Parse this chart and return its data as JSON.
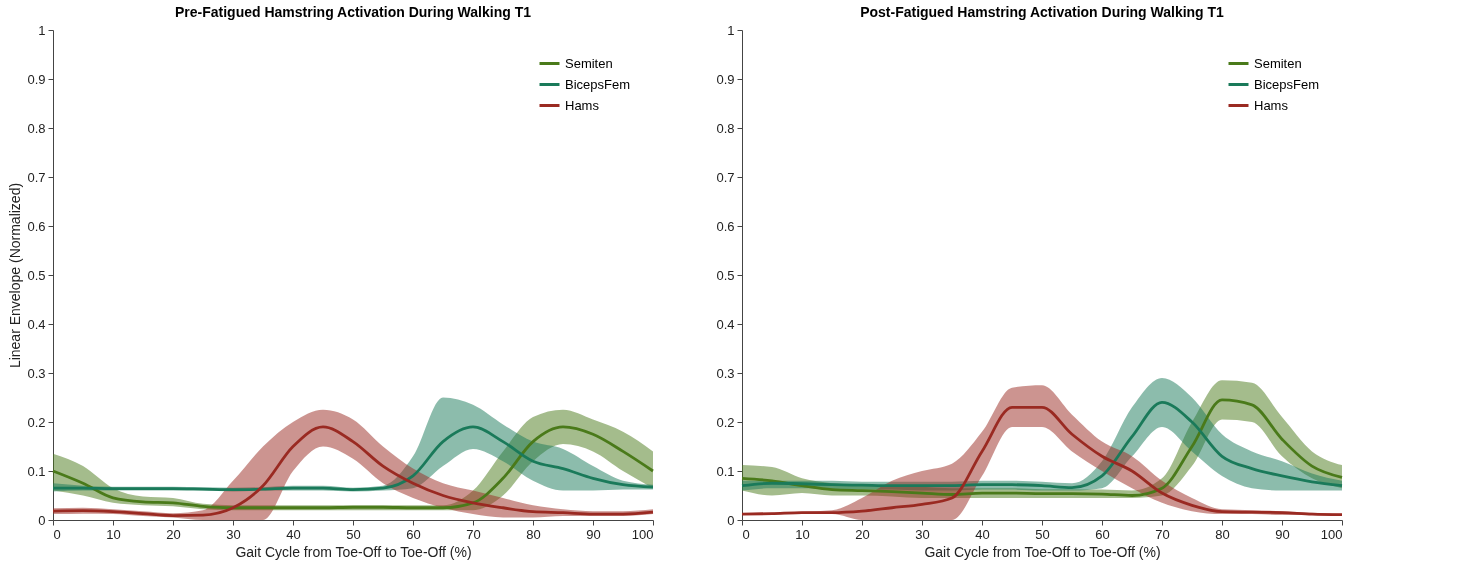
{
  "chart_data": [
    {
      "type": "line",
      "title": "Pre-Fatigued Hamstring Activation During Walking T1",
      "xlabel": "Gait Cycle from Toe-Off to Toe-Off (%)",
      "ylabel": "Linear Envelope (Normalized)",
      "x": [
        0,
        5,
        10,
        15,
        20,
        25,
        30,
        35,
        40,
        45,
        50,
        55,
        60,
        65,
        70,
        75,
        80,
        85,
        90,
        95,
        100
      ],
      "series": [
        {
          "name": "Semiten",
          "color": "#4a7a1a",
          "values": [
            0.1,
            0.075,
            0.045,
            0.037,
            0.035,
            0.028,
            0.025,
            0.025,
            0.025,
            0.025,
            0.026,
            0.026,
            0.025,
            0.025,
            0.035,
            0.085,
            0.16,
            0.19,
            0.175,
            0.14,
            0.1
          ],
          "lower": [
            0.06,
            0.05,
            0.035,
            0.03,
            0.028,
            0.022,
            0.02,
            0.02,
            0.02,
            0.02,
            0.02,
            0.02,
            0.02,
            0.02,
            0.02,
            0.05,
            0.12,
            0.155,
            0.14,
            0.1,
            0.065
          ],
          "upper": [
            0.135,
            0.11,
            0.065,
            0.048,
            0.045,
            0.033,
            0.03,
            0.03,
            0.03,
            0.03,
            0.03,
            0.03,
            0.03,
            0.03,
            0.06,
            0.14,
            0.21,
            0.225,
            0.205,
            0.18,
            0.14
          ]
        },
        {
          "name": "BicepsFem",
          "color": "#1a7a5a",
          "values": [
            0.065,
            0.065,
            0.064,
            0.064,
            0.064,
            0.063,
            0.062,
            0.063,
            0.065,
            0.065,
            0.062,
            0.065,
            0.09,
            0.16,
            0.19,
            0.16,
            0.12,
            0.105,
            0.085,
            0.072,
            0.067
          ],
          "lower": [
            0.058,
            0.06,
            0.06,
            0.06,
            0.06,
            0.06,
            0.058,
            0.06,
            0.06,
            0.06,
            0.058,
            0.06,
            0.065,
            0.11,
            0.145,
            0.12,
            0.08,
            0.06,
            0.06,
            0.062,
            0.062
          ],
          "upper": [
            0.075,
            0.07,
            0.068,
            0.068,
            0.068,
            0.067,
            0.066,
            0.067,
            0.07,
            0.07,
            0.066,
            0.07,
            0.13,
            0.25,
            0.235,
            0.195,
            0.16,
            0.145,
            0.11,
            0.08,
            0.072
          ]
        },
        {
          "name": "Hams",
          "color": "#9a2a22",
          "values": [
            0.018,
            0.019,
            0.017,
            0.013,
            0.009,
            0.01,
            0.025,
            0.07,
            0.15,
            0.19,
            0.16,
            0.11,
            0.075,
            0.05,
            0.035,
            0.025,
            0.017,
            0.015,
            0.012,
            0.012,
            0.016
          ],
          "lower": [
            0.012,
            0.013,
            0.012,
            0.008,
            0.005,
            0,
            0,
            0,
            0.1,
            0.15,
            0.125,
            0.075,
            0.045,
            0.025,
            0.012,
            0.005,
            0.005,
            0.008,
            0.008,
            0.008,
            0.012
          ],
          "upper": [
            0.024,
            0.025,
            0.022,
            0.018,
            0.014,
            0.02,
            0.08,
            0.15,
            0.2,
            0.225,
            0.205,
            0.15,
            0.105,
            0.075,
            0.06,
            0.045,
            0.03,
            0.022,
            0.018,
            0.018,
            0.022
          ]
        }
      ],
      "xlim": [
        0,
        100
      ],
      "xticks": [
        0,
        10,
        20,
        30,
        40,
        50,
        60,
        70,
        80,
        90,
        100
      ],
      "ylim": [
        0,
        1
      ],
      "yticks": [
        0,
        0.1,
        0.2,
        0.3,
        0.4,
        0.5,
        0.6,
        0.7,
        0.8,
        0.9,
        1
      ],
      "legend": "top right"
    },
    {
      "type": "line",
      "title": "Post-Fatigued Hamstring Activation During Walking T1",
      "xlabel": "Gait Cycle from Toe-Off to Toe-Off (%)",
      "x": [
        0,
        5,
        10,
        15,
        20,
        25,
        30,
        35,
        40,
        45,
        50,
        55,
        60,
        65,
        70,
        75,
        80,
        85,
        90,
        95,
        100
      ],
      "series": [
        {
          "name": "Semiten",
          "color": "#4a7a1a",
          "values": [
            0.085,
            0.08,
            0.07,
            0.062,
            0.06,
            0.058,
            0.055,
            0.052,
            0.055,
            0.055,
            0.054,
            0.054,
            0.053,
            0.05,
            0.065,
            0.15,
            0.245,
            0.235,
            0.165,
            0.11,
            0.087
          ],
          "lower": [
            0.06,
            0.05,
            0.055,
            0.05,
            0.05,
            0.048,
            0.045,
            0.045,
            0.045,
            0.045,
            0.045,
            0.045,
            0.045,
            0.045,
            0.05,
            0.11,
            0.205,
            0.2,
            0.13,
            0.085,
            0.065
          ],
          "upper": [
            0.112,
            0.108,
            0.085,
            0.075,
            0.072,
            0.07,
            0.068,
            0.065,
            0.065,
            0.065,
            0.063,
            0.063,
            0.062,
            0.06,
            0.085,
            0.2,
            0.285,
            0.28,
            0.21,
            0.14,
            0.112
          ]
        },
        {
          "name": "BicepsFem",
          "color": "#1a7a5a",
          "values": [
            0.07,
            0.075,
            0.074,
            0.072,
            0.071,
            0.07,
            0.07,
            0.07,
            0.072,
            0.072,
            0.07,
            0.066,
            0.09,
            0.17,
            0.24,
            0.2,
            0.13,
            0.105,
            0.09,
            0.078,
            0.07
          ],
          "lower": [
            0.06,
            0.065,
            0.065,
            0.063,
            0.062,
            0.062,
            0.06,
            0.06,
            0.062,
            0.062,
            0.06,
            0.06,
            0.065,
            0.13,
            0.19,
            0.14,
            0.09,
            0.065,
            0.06,
            0.06,
            0.06
          ],
          "upper": [
            0.08,
            0.08,
            0.08,
            0.08,
            0.078,
            0.078,
            0.078,
            0.078,
            0.08,
            0.08,
            0.078,
            0.075,
            0.12,
            0.23,
            0.29,
            0.25,
            0.175,
            0.14,
            0.12,
            0.095,
            0.08
          ]
        },
        {
          "name": "Hams",
          "color": "#9a2a22",
          "values": [
            0.012,
            0.013,
            0.015,
            0.015,
            0.018,
            0.025,
            0.032,
            0.045,
            0.14,
            0.23,
            0.23,
            0.175,
            0.13,
            0.1,
            0.055,
            0.03,
            0.017,
            0.016,
            0.015,
            0.012,
            0.011
          ],
          "lower": [
            0.01,
            0.011,
            0.012,
            0.012,
            0,
            0,
            0,
            0,
            0.09,
            0.19,
            0.19,
            0.14,
            0.1,
            0.065,
            0.035,
            0.018,
            0.012,
            0.012,
            0.01,
            0.01,
            0.009
          ],
          "upper": [
            0.014,
            0.015,
            0.017,
            0.02,
            0.045,
            0.08,
            0.1,
            0.115,
            0.18,
            0.27,
            0.275,
            0.215,
            0.16,
            0.13,
            0.08,
            0.045,
            0.022,
            0.02,
            0.018,
            0.015,
            0.013
          ]
        }
      ],
      "xlim": [
        0,
        100
      ],
      "xticks": [
        0,
        10,
        20,
        30,
        40,
        50,
        60,
        70,
        80,
        90,
        100
      ],
      "ylim": [
        0,
        1
      ],
      "yticks": [
        0,
        0.1,
        0.2,
        0.3,
        0.4,
        0.5,
        0.6,
        0.7,
        0.8,
        0.9,
        1
      ],
      "legend": "top right"
    }
  ]
}
